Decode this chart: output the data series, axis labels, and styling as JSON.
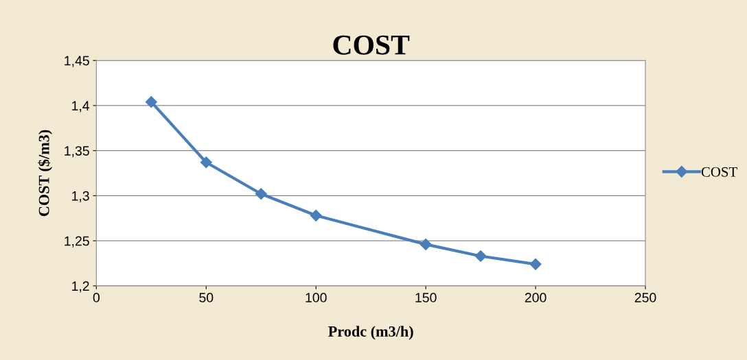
{
  "chart_data": {
    "type": "line",
    "title": "COST",
    "xlabel": "Prodc (m3/h)",
    "ylabel": "COST ($/m3)",
    "x": [
      25,
      50,
      75,
      100,
      150,
      175,
      200
    ],
    "series": [
      {
        "name": "COST",
        "color": "#4a7ebb",
        "values": [
          1.404,
          1.337,
          1.302,
          1.278,
          1.246,
          1.233,
          1.224
        ]
      }
    ],
    "xlim": [
      0,
      250
    ],
    "xticks": [
      0,
      50,
      100,
      150,
      200,
      250
    ],
    "ylim": [
      1.2,
      1.45
    ],
    "yticks": [
      {
        "value": 1.2,
        "label": "1,2"
      },
      {
        "value": 1.25,
        "label": "1,25"
      },
      {
        "value": 1.3,
        "label": "1,3"
      },
      {
        "value": 1.35,
        "label": "1,35"
      },
      {
        "value": 1.4,
        "label": "1,4"
      },
      {
        "value": 1.45,
        "label": "1,45"
      }
    ],
    "grid": "y",
    "legend": "right",
    "marker": "diamond",
    "line_style": "solid"
  }
}
